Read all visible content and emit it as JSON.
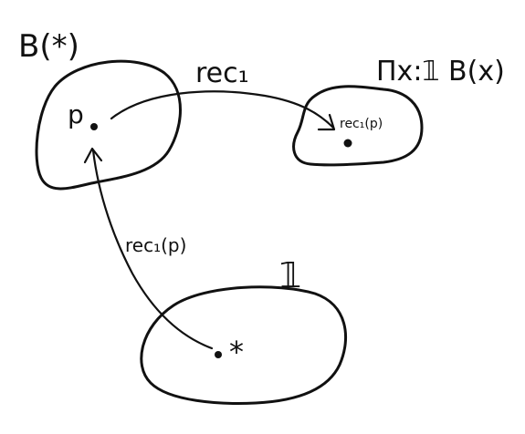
{
  "labels": {
    "top_left_set": "B(*)",
    "top_arrow": "rec₁",
    "top_right_set": "Πx:𝟙 B(x)",
    "point_p": "p",
    "point_rec1_p": "rec₁(p)",
    "vertical_arrow": "rec₁(p)",
    "bottom_set": "𝟙",
    "point_star": "*"
  },
  "colors": {
    "ink": "#111111",
    "background": "#ffffff"
  }
}
